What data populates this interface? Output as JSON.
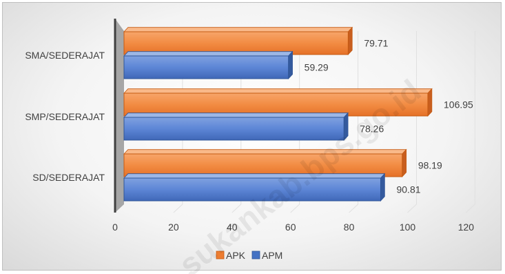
{
  "chart_data": {
    "type": "bar",
    "orientation": "horizontal",
    "categories": [
      "SD/SEDERAJAT",
      "SMP/SEDERAJAT",
      "SMA/SEDERAJAT"
    ],
    "series": [
      {
        "name": "APK",
        "color": "#ed7d31",
        "values": [
          98.19,
          106.95,
          79.71
        ]
      },
      {
        "name": "APM",
        "color": "#4472c4",
        "values": [
          90.81,
          78.26,
          59.29
        ]
      }
    ],
    "xlim": [
      0,
      120
    ],
    "xticks": [
      "0",
      "20",
      "40",
      "60",
      "80",
      "100",
      "120"
    ],
    "grid": true,
    "legend": "bottom",
    "style": "3d",
    "watermark": "sukankab.bps.go.id"
  }
}
